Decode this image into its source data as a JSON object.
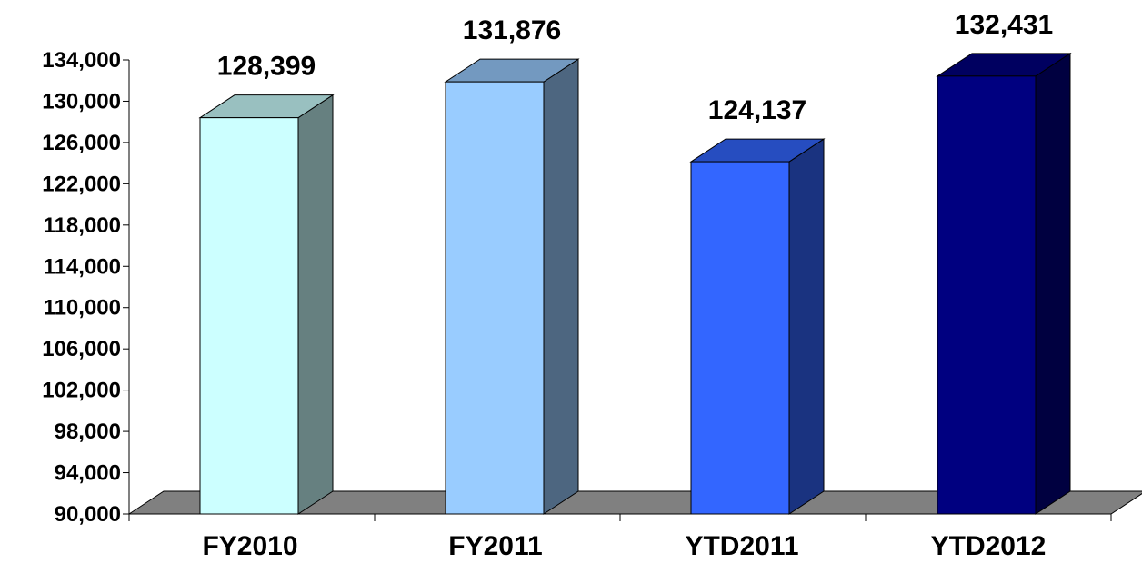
{
  "chart_data": {
    "type": "bar",
    "style": "3d-column",
    "categories": [
      "FY2010",
      "FY2011",
      "YTD2011",
      "YTD2012"
    ],
    "values": [
      128399,
      131876,
      124137,
      132431
    ],
    "data_labels": [
      "128,399",
      "131,876",
      "124,137",
      "132,431"
    ],
    "ylim": [
      90000,
      134000
    ],
    "y_ticks": [
      90000,
      94000,
      98000,
      102000,
      106000,
      110000,
      114000,
      118000,
      122000,
      126000,
      130000,
      134000
    ],
    "y_tick_labels": [
      "90,000",
      "94,000",
      "98,000",
      "102,000",
      "106,000",
      "110,000",
      "114,000",
      "118,000",
      "122,000",
      "126,000",
      "130,000",
      "134,000"
    ],
    "title": "",
    "xlabel": "",
    "ylabel": "",
    "grid": false,
    "legend": "none",
    "colors": {
      "front": [
        "#ccffff",
        "#99ccff",
        "#3366ff",
        "#000080"
      ],
      "side": [
        "#668080",
        "#4d6680",
        "#1a3380",
        "#000040"
      ],
      "top": [
        "#99c0c0",
        "#7399c0",
        "#264dc0",
        "#000060"
      ],
      "floor": "#808080",
      "edge": "#000000"
    }
  }
}
